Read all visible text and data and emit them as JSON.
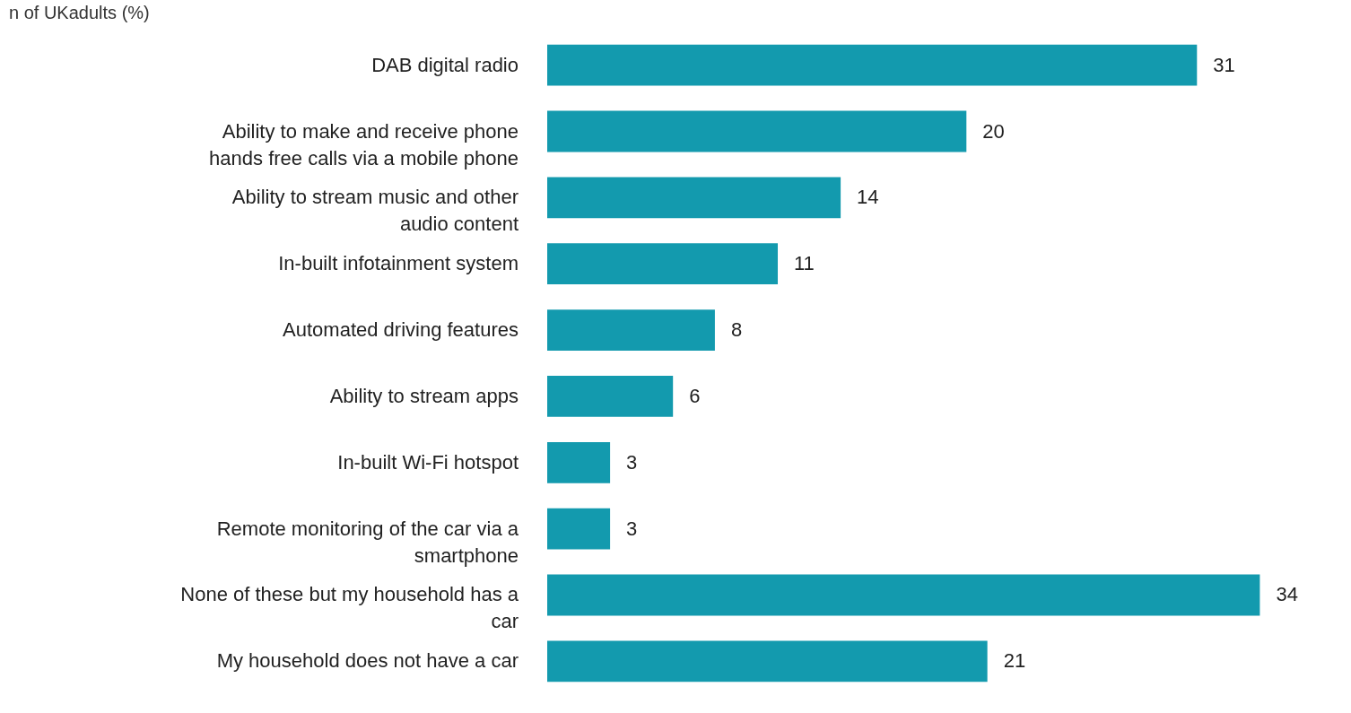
{
  "chart_data": {
    "type": "bar",
    "orientation": "horizontal",
    "title": "n of UKadults (%)",
    "categories": [
      "DAB digital radio",
      "Ability to make and receive phone hands free calls via a mobile phone",
      "Ability to stream music and other audio content",
      "In-built infotainment system",
      "Automated driving features",
      "Ability to stream apps",
      "In-built Wi-Fi hotspot",
      "Remote monitoring of the car via a smartphone",
      "None of these but my household has a car",
      "My household does not have a car"
    ],
    "values": [
      31,
      20,
      14,
      11,
      8,
      6,
      3,
      3,
      34,
      21
    ],
    "color": "#139aae",
    "data_labels": true
  }
}
